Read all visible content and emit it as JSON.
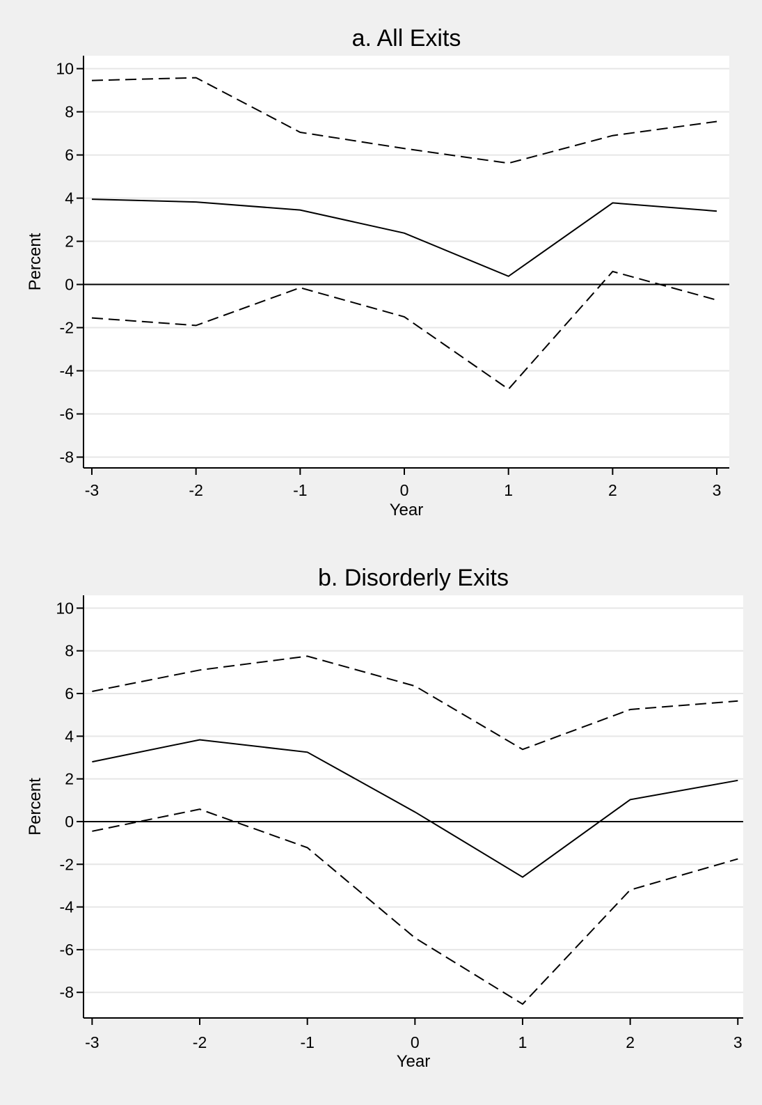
{
  "chart_data": [
    {
      "type": "line",
      "title": "a. All Exits",
      "xlabel": "Year",
      "ylabel": "Percent",
      "x": [
        -3,
        -2,
        -1,
        0,
        1,
        2,
        3
      ],
      "xticks": [
        "-3",
        "-2",
        "-1",
        "0",
        "1",
        "2",
        "3"
      ],
      "yticks": [
        "-8",
        "-6",
        "-4",
        "-2",
        "0",
        "2",
        "4",
        "6",
        "8",
        "10"
      ],
      "xlim": [
        -3.08,
        3.12
      ],
      "ylim": [
        -8.5,
        10.6
      ],
      "grid": true,
      "zero_line": true,
      "series": [
        {
          "style": "dashed",
          "values": [
            9.45,
            9.58,
            7.05,
            6.3,
            5.62,
            6.9,
            7.55
          ]
        },
        {
          "style": "solid",
          "values": [
            3.95,
            3.82,
            3.45,
            2.38,
            0.38,
            3.78,
            3.4
          ]
        },
        {
          "style": "dashed",
          "values": [
            -1.55,
            -1.9,
            -0.15,
            -1.5,
            -4.85,
            0.6,
            -0.72
          ]
        }
      ]
    },
    {
      "type": "line",
      "title": "b. Disorderly Exits",
      "xlabel": "Year",
      "ylabel": "Percent",
      "x": [
        -3,
        -2,
        -1,
        0,
        1,
        2,
        3
      ],
      "xticks": [
        "-3",
        "-2",
        "-1",
        "0",
        "1",
        "2",
        "3"
      ],
      "yticks": [
        "-8",
        "-6",
        "-4",
        "-2",
        "0",
        "2",
        "4",
        "6",
        "8",
        "10"
      ],
      "xlim": [
        -3.08,
        3.05
      ],
      "ylim": [
        -9.2,
        10.6
      ],
      "grid": true,
      "zero_line": true,
      "series": [
        {
          "style": "dashed",
          "values": [
            6.1,
            7.1,
            7.75,
            6.35,
            3.38,
            5.25,
            5.65
          ]
        },
        {
          "style": "solid",
          "values": [
            2.8,
            3.83,
            3.25,
            0.45,
            -2.6,
            1.03,
            1.93
          ]
        },
        {
          "style": "dashed",
          "values": [
            -0.45,
            0.58,
            -1.22,
            -5.45,
            -8.55,
            -3.2,
            -1.75
          ]
        }
      ]
    }
  ]
}
